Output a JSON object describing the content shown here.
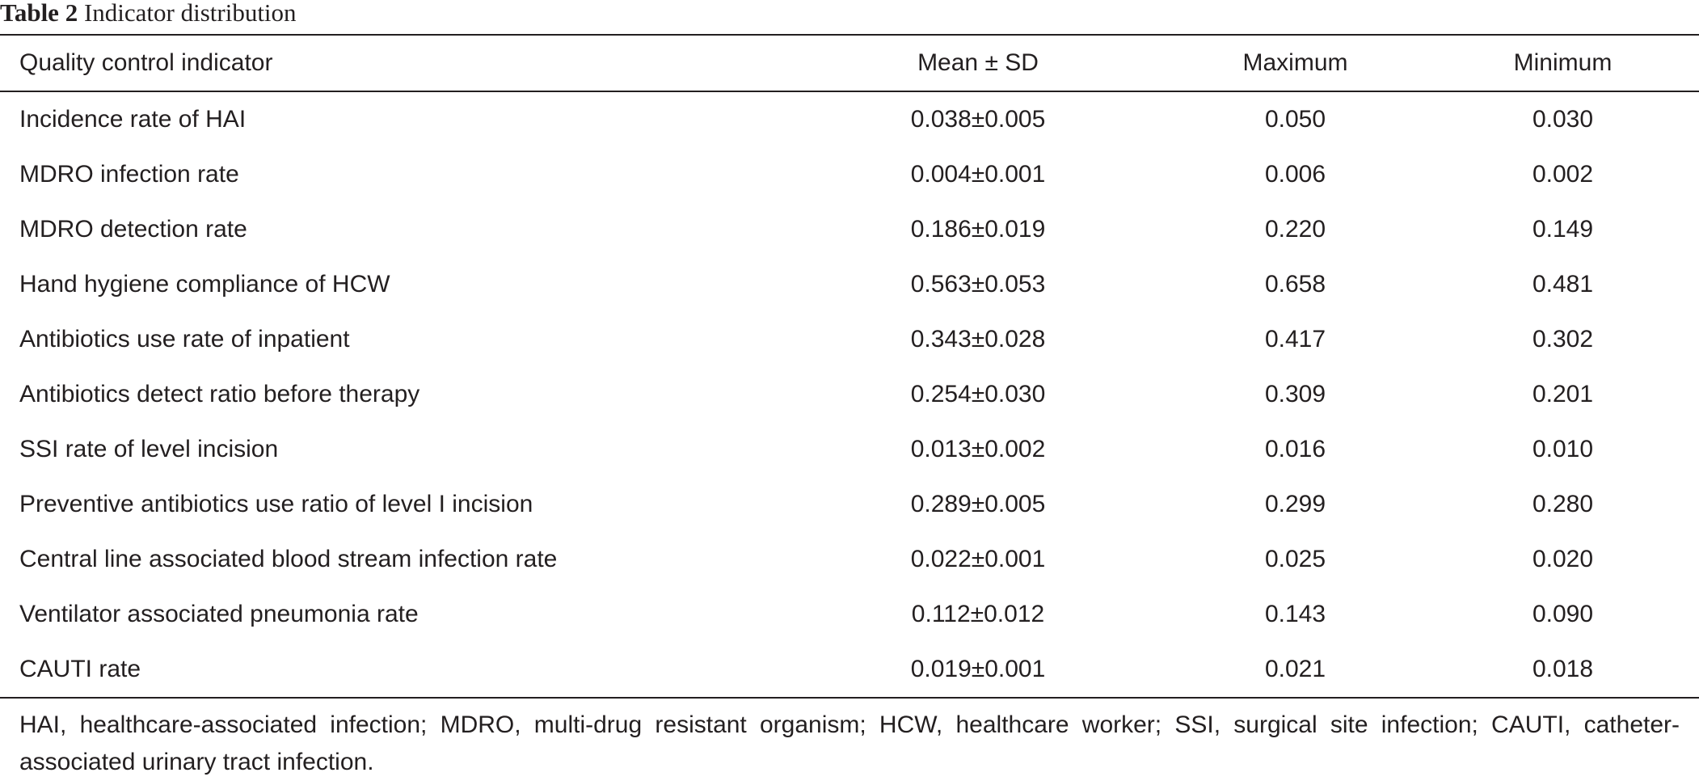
{
  "caption": {
    "label": "Table 2",
    "title": "Indicator distribution"
  },
  "table": {
    "headers": {
      "indicator": "Quality control indicator",
      "mean_sd": "Mean ± SD",
      "maximum": "Maximum",
      "minimum": "Minimum"
    },
    "rows": [
      {
        "indicator": "Incidence rate of HAI",
        "mean_sd": "0.038±0.005",
        "maximum": "0.050",
        "minimum": "0.030"
      },
      {
        "indicator": "MDRO infection rate",
        "mean_sd": "0.004±0.001",
        "maximum": "0.006",
        "minimum": "0.002"
      },
      {
        "indicator": "MDRO detection rate",
        "mean_sd": "0.186±0.019",
        "maximum": "0.220",
        "minimum": "0.149"
      },
      {
        "indicator": "Hand hygiene compliance of HCW",
        "mean_sd": "0.563±0.053",
        "maximum": "0.658",
        "minimum": "0.481"
      },
      {
        "indicator": "Antibiotics use rate of inpatient",
        "mean_sd": "0.343±0.028",
        "maximum": "0.417",
        "minimum": "0.302"
      },
      {
        "indicator": "Antibiotics detect ratio before therapy",
        "mean_sd": "0.254±0.030",
        "maximum": "0.309",
        "minimum": "0.201"
      },
      {
        "indicator": "SSI rate of level incision",
        "mean_sd": "0.013±0.002",
        "maximum": "0.016",
        "minimum": "0.010"
      },
      {
        "indicator": "Preventive antibiotics use ratio of level I incision",
        "mean_sd": "0.289±0.005",
        "maximum": "0.299",
        "minimum": "0.280"
      },
      {
        "indicator": "Central line associated blood stream infection rate",
        "mean_sd": "0.022±0.001",
        "maximum": "0.025",
        "minimum": "0.020"
      },
      {
        "indicator": "Ventilator associated pneumonia rate",
        "mean_sd": "0.112±0.012",
        "maximum": "0.143",
        "minimum": "0.090"
      },
      {
        "indicator": "CAUTI rate",
        "mean_sd": "0.019±0.001",
        "maximum": "0.021",
        "minimum": "0.018"
      }
    ]
  },
  "footnote": "HAI, healthcare-associated infection; MDRO, multi-drug resistant organism; HCW, healthcare worker; SSI, surgical site infection; CAUTI, catheter-associated urinary tract infection."
}
